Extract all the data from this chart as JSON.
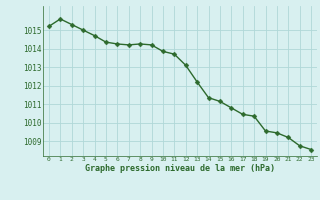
{
  "hours": [
    0,
    1,
    2,
    3,
    4,
    5,
    6,
    7,
    8,
    9,
    10,
    11,
    12,
    13,
    14,
    15,
    16,
    17,
    18,
    19,
    20,
    21,
    22,
    23
  ],
  "pressure": [
    1015.2,
    1015.6,
    1015.3,
    1015.0,
    1014.7,
    1014.35,
    1014.25,
    1014.2,
    1014.25,
    1014.2,
    1013.85,
    1013.7,
    1013.1,
    1012.2,
    1011.35,
    1011.15,
    1010.8,
    1010.45,
    1010.35,
    1009.55,
    1009.45,
    1009.2,
    1008.75,
    1008.55
  ],
  "line_color": "#2d6a2d",
  "marker_color": "#2d6a2d",
  "bg_color": "#d8f0f0",
  "grid_color": "#b0d8d8",
  "xlabel": "Graphe pression niveau de la mer (hPa)",
  "xlabel_color": "#2d6a2d",
  "tick_color": "#2d6a2d",
  "ylim": [
    1008.2,
    1016.3
  ],
  "yticks": [
    1009,
    1010,
    1011,
    1012,
    1013,
    1014,
    1015
  ],
  "xticks": [
    0,
    1,
    2,
    3,
    4,
    5,
    6,
    7,
    8,
    9,
    10,
    11,
    12,
    13,
    14,
    15,
    16,
    17,
    18,
    19,
    20,
    21,
    22,
    23
  ],
  "marker_size": 2.5,
  "line_width": 1.0
}
